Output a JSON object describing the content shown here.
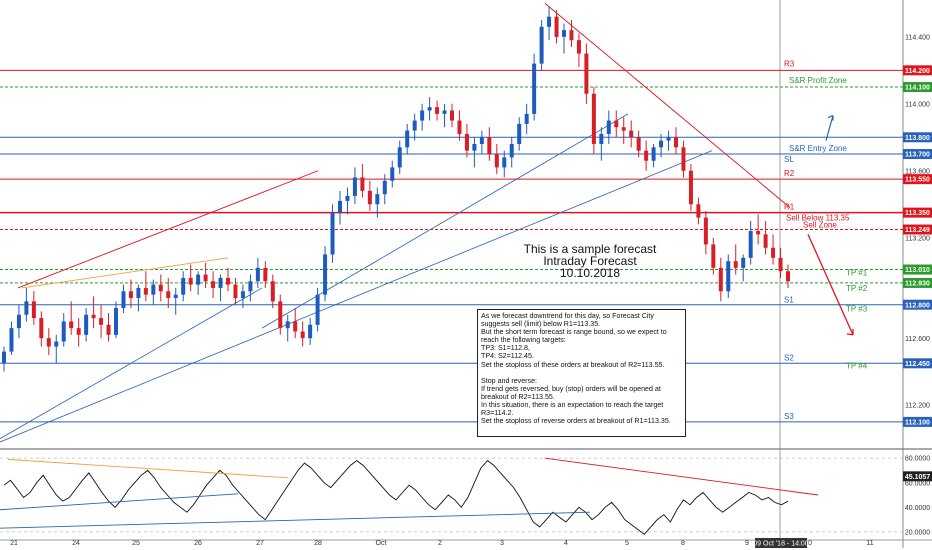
{
  "chart_data": [
    {
      "type": "candlestick",
      "title_lines": [
        "This is a sample forecast",
        "Intraday Forecast",
        "10.10.2018"
      ],
      "ylim": [
        111.95,
        114.62
      ],
      "y_ticks": [
        {
          "value": 114.4,
          "label": "114.400"
        },
        {
          "value": 114.0,
          "label": "114.000"
        },
        {
          "value": 113.6,
          "label": "113.600"
        },
        {
          "value": 113.2,
          "label": "113.200"
        },
        {
          "value": 112.6,
          "label": "112.600"
        },
        {
          "value": 112.2,
          "label": "112.200"
        }
      ],
      "x_ticks": [
        "21",
        "24",
        "25",
        "26",
        "27",
        "28",
        "Oct",
        "2",
        "3",
        "4",
        "5",
        "8",
        "9",
        "10",
        "11"
      ],
      "cursor_label": "09 Oct '18 - 14:00",
      "levels": [
        {
          "name": "R3",
          "value": 114.2,
          "label": "114.200",
          "color": "#e0141e",
          "style": "solid"
        },
        {
          "name": "S&R Profit Zone",
          "value": 114.1,
          "label": "114.100",
          "color": "#2c9a2c",
          "style": "dash"
        },
        {
          "name": "",
          "value": 113.8,
          "label": "113.800",
          "color": "#2962b8",
          "style": "solid"
        },
        {
          "name": "S&R Entry Zone",
          "value": 113.7,
          "label": "113.700",
          "color": "#2962b8",
          "style": "solid"
        },
        {
          "name": "SL",
          "value": 113.7,
          "label": "",
          "color": "#2962b8",
          "style": "none"
        },
        {
          "name": "R2",
          "value": 113.55,
          "label": "113.550",
          "color": "#e0141e",
          "style": "solid"
        },
        {
          "name": "R1",
          "value": 113.35,
          "label": "113.350",
          "color": "#e0141e",
          "style": "solid"
        },
        {
          "name": "Sell Zone",
          "value": 113.249,
          "label": "113.249",
          "color": "#e0141e",
          "style": "dash"
        },
        {
          "name": "TP #1",
          "value": 113.01,
          "label": "113.010",
          "color": "#2c9a2c",
          "style": "dash"
        },
        {
          "name": "TP #2",
          "value": 112.93,
          "label": "112.930",
          "color": "#2c9a2c",
          "style": "dash"
        },
        {
          "name": "S1",
          "value": 112.8,
          "label": "112.800",
          "color": "#2962b8",
          "style": "solid"
        },
        {
          "name": "S2",
          "value": 112.45,
          "label": "112.450",
          "color": "#2962b8",
          "style": "solid"
        },
        {
          "name": "S3",
          "value": 112.1,
          "label": "112.100",
          "color": "#2962b8",
          "style": "solid"
        }
      ],
      "annotations": [
        "Sell Below 113.35",
        "TP #3",
        "TP #4"
      ],
      "series": [
        {
          "values": [
            [
              112.45,
              112.55,
              112.4,
              112.52
            ],
            [
              112.52,
              112.7,
              112.5,
              112.66
            ],
            [
              112.66,
              112.8,
              112.6,
              112.74
            ],
            [
              112.74,
              112.9,
              112.7,
              112.82
            ],
            [
              112.82,
              112.88,
              112.68,
              112.72
            ],
            [
              112.72,
              112.76,
              112.55,
              112.6
            ],
            [
              112.6,
              112.66,
              112.5,
              112.55
            ],
            [
              112.55,
              112.62,
              112.45,
              112.58
            ],
            [
              112.58,
              112.75,
              112.55,
              112.7
            ],
            [
              112.7,
              112.82,
              112.62,
              112.66
            ],
            [
              112.66,
              112.72,
              112.55,
              112.62
            ],
            [
              112.62,
              112.78,
              112.58,
              112.74
            ],
            [
              112.74,
              112.85,
              112.66,
              112.72
            ],
            [
              112.72,
              112.8,
              112.6,
              112.68
            ],
            [
              112.68,
              112.75,
              112.58,
              112.62
            ],
            [
              112.62,
              112.82,
              112.6,
              112.78
            ],
            [
              112.78,
              112.92,
              112.75,
              112.88
            ],
            [
              112.88,
              112.95,
              112.78,
              112.84
            ],
            [
              112.84,
              112.92,
              112.76,
              112.9
            ],
            [
              112.9,
              113.0,
              112.82,
              112.86
            ],
            [
              112.86,
              112.95,
              112.8,
              112.92
            ],
            [
              112.92,
              112.98,
              112.82,
              112.88
            ],
            [
              112.88,
              112.96,
              112.78,
              112.84
            ],
            [
              112.84,
              112.9,
              112.74,
              112.86
            ],
            [
              112.86,
              113.0,
              112.82,
              112.96
            ],
            [
              112.96,
              113.04,
              112.88,
              112.92
            ],
            [
              112.92,
              113.0,
              112.86,
              112.98
            ],
            [
              112.98,
              113.05,
              112.9,
              112.94
            ],
            [
              112.94,
              113.0,
              112.84,
              112.9
            ],
            [
              112.9,
              112.98,
              112.82,
              112.96
            ],
            [
              112.96,
              113.02,
              112.88,
              112.92
            ],
            [
              112.92,
              112.96,
              112.8,
              112.84
            ],
            [
              112.84,
              112.92,
              112.78,
              112.88
            ],
            [
              112.88,
              112.98,
              112.82,
              112.94
            ],
            [
              112.94,
              113.08,
              112.9,
              113.02
            ],
            [
              113.02,
              113.06,
              112.9,
              112.94
            ],
            [
              112.94,
              112.98,
              112.78,
              112.82
            ],
            [
              112.82,
              112.86,
              112.62,
              112.66
            ],
            [
              112.66,
              112.74,
              112.58,
              112.7
            ],
            [
              112.7,
              112.78,
              112.6,
              112.64
            ],
            [
              112.64,
              112.7,
              112.55,
              112.6
            ],
            [
              112.6,
              112.72,
              112.56,
              112.68
            ],
            [
              112.68,
              112.9,
              112.64,
              112.86
            ],
            [
              112.86,
              113.15,
              112.82,
              113.1
            ],
            [
              113.1,
              113.4,
              113.05,
              113.35
            ],
            [
              113.35,
              113.48,
              113.28,
              113.42
            ],
            [
              113.42,
              113.5,
              113.34,
              113.45
            ],
            [
              113.45,
              113.62,
              113.4,
              113.56
            ],
            [
              113.56,
              113.64,
              113.44,
              113.48
            ],
            [
              113.48,
              113.54,
              113.36,
              113.4
            ],
            [
              113.4,
              113.5,
              113.32,
              113.46
            ],
            [
              113.46,
              113.58,
              113.4,
              113.54
            ],
            [
              113.54,
              113.66,
              113.5,
              113.62
            ],
            [
              113.62,
              113.78,
              113.58,
              113.74
            ],
            [
              113.74,
              113.88,
              113.7,
              113.84
            ],
            [
              113.84,
              113.94,
              113.78,
              113.9
            ],
            [
              113.9,
              114.0,
              113.84,
              113.96
            ],
            [
              113.96,
              114.04,
              113.9,
              113.98
            ],
            [
              113.98,
              114.02,
              113.9,
              113.94
            ],
            [
              113.94,
              114.0,
              113.86,
              113.96
            ],
            [
              113.96,
              114.0,
              113.86,
              113.9
            ],
            [
              113.9,
              113.96,
              113.78,
              113.82
            ],
            [
              113.82,
              113.88,
              113.68,
              113.72
            ],
            [
              113.72,
              113.8,
              113.62,
              113.76
            ],
            [
              113.76,
              113.84,
              113.7,
              113.8
            ],
            [
              113.8,
              113.86,
              113.66,
              113.7
            ],
            [
              113.7,
              113.76,
              113.58,
              113.62
            ],
            [
              113.62,
              113.72,
              113.56,
              113.68
            ],
            [
              113.68,
              113.8,
              113.62,
              113.76
            ],
            [
              113.76,
              113.92,
              113.72,
              113.88
            ],
            [
              113.88,
              114.0,
              113.82,
              113.94
            ],
            [
              113.94,
              114.3,
              113.9,
              114.24
            ],
            [
              114.24,
              114.5,
              114.2,
              114.46
            ],
            [
              114.46,
              114.58,
              114.38,
              114.52
            ],
            [
              114.52,
              114.56,
              114.36,
              114.4
            ],
            [
              114.4,
              114.48,
              114.3,
              114.44
            ],
            [
              114.44,
              114.5,
              114.34,
              114.38
            ],
            [
              114.38,
              114.42,
              114.22,
              114.3
            ],
            [
              114.3,
              114.36,
              114.0,
              114.06
            ],
            [
              114.06,
              114.1,
              113.7,
              113.76
            ],
            [
              113.76,
              113.86,
              113.66,
              113.82
            ],
            [
              113.82,
              113.96,
              113.76,
              113.9
            ],
            [
              113.9,
              113.96,
              113.8,
              113.86
            ],
            [
              113.86,
              113.92,
              113.76,
              113.84
            ],
            [
              113.84,
              113.9,
              113.74,
              113.8
            ],
            [
              113.8,
              113.84,
              113.68,
              113.72
            ],
            [
              113.72,
              113.78,
              113.6,
              113.66
            ],
            [
              113.66,
              113.76,
              113.62,
              113.74
            ],
            [
              113.74,
              113.82,
              113.68,
              113.78
            ],
            [
              113.78,
              113.84,
              113.72,
              113.8
            ],
            [
              113.8,
              113.86,
              113.7,
              113.74
            ],
            [
              113.74,
              113.78,
              113.56,
              113.6
            ],
            [
              113.6,
              113.64,
              113.36,
              113.4
            ],
            [
              113.4,
              113.44,
              113.28,
              113.32
            ],
            [
              113.32,
              113.36,
              113.1,
              113.16
            ],
            [
              113.16,
              113.2,
              112.98,
              113.02
            ],
            [
              113.02,
              113.08,
              112.82,
              112.88
            ],
            [
              112.88,
              113.1,
              112.84,
              113.06
            ],
            [
              113.06,
              113.16,
              112.98,
              113.02
            ],
            [
              113.02,
              113.1,
              112.94,
              113.08
            ],
            [
              113.08,
              113.3,
              113.04,
              113.24
            ],
            [
              113.24,
              113.34,
              113.16,
              113.22
            ],
            [
              113.22,
              113.3,
              113.1,
              113.14
            ],
            [
              113.14,
              113.22,
              113.04,
              113.08
            ],
            [
              113.08,
              113.14,
              112.96,
              113.0
            ],
            [
              113.0,
              113.04,
              112.9,
              112.94
            ]
          ]
        }
      ]
    },
    {
      "type": "line",
      "ylim": [
        15,
        85
      ],
      "y_ticks": [
        {
          "value": 80,
          "label": "80.0000"
        },
        {
          "value": 60,
          "label": "60.0000"
        },
        {
          "value": 40,
          "label": "40.0000"
        },
        {
          "value": 20,
          "label": "20.0000"
        }
      ],
      "value_label": "45.1057",
      "series": [
        {
          "values": [
            58,
            62,
            55,
            48,
            52,
            60,
            66,
            58,
            50,
            45,
            48,
            55,
            62,
            68,
            60,
            52,
            45,
            40,
            46,
            54,
            60,
            66,
            70,
            64,
            56,
            50,
            44,
            40,
            36,
            42,
            50,
            58,
            64,
            70,
            66,
            58,
            52,
            46,
            40,
            34,
            30,
            38,
            46,
            54,
            62,
            70,
            76,
            72,
            66,
            60,
            56,
            62,
            68,
            74,
            78,
            74,
            68,
            62,
            56,
            50,
            46,
            52,
            58,
            54,
            48,
            42,
            38,
            44,
            50,
            46,
            40,
            48,
            60,
            72,
            78,
            74,
            68,
            62,
            56,
            48,
            38,
            28,
            24,
            30,
            36,
            32,
            28,
            34,
            40,
            36,
            30,
            34,
            40,
            44,
            38,
            30,
            26,
            22,
            18,
            24,
            30,
            34,
            28,
            38,
            46,
            42,
            48,
            52,
            46,
            40,
            36,
            40,
            44,
            48,
            52,
            50,
            46,
            48,
            44,
            42,
            45
          ]
        }
      ]
    }
  ],
  "note_paragraphs": [
    "As we forecast downtrend for this day, so Forecast City suggests sell (limit) below R1=113.35.\nBut the short term forecast is range bound, so we expect to reach the following targets:\nTP3: S1=112.8,\nTP4: S2=112.45.\nSet the stoploss of these orders at breakout of R2=113.55.",
    "Stop and reverse:\nIf trend gets reversed, buy (stop) orders will be opened at breakout of R2=113.55.\nIn this situation, there is an expectation to reach the target R3=114.2.\nSet the stoploss of reverse orders at breakout of R1=113.35."
  ],
  "colors": {
    "up": "#1e5bbf",
    "down": "#d61f26",
    "green": "#2c9a2c",
    "red": "#e0141e",
    "blue": "#2962b8",
    "orange": "#f0a040"
  },
  "icons": [
    "up-arrow-icon",
    "down-arrow-icon"
  ]
}
